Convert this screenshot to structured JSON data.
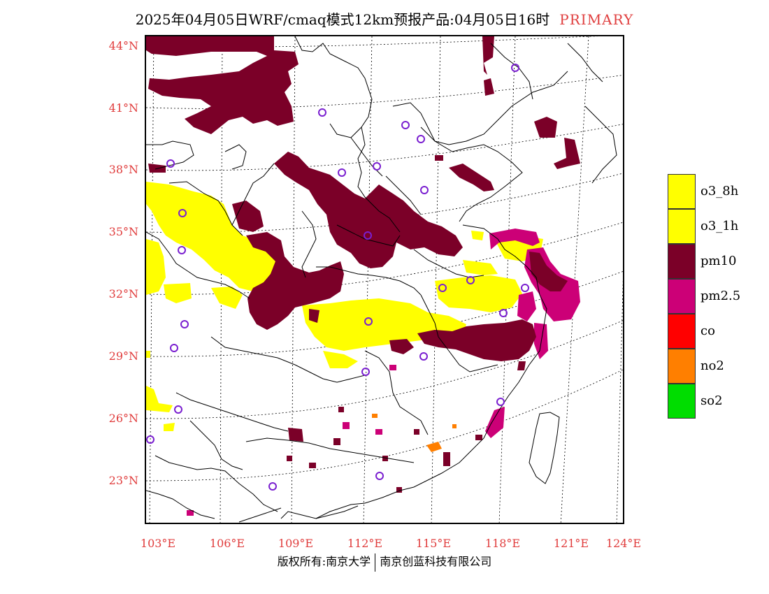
{
  "header": {
    "title": "2025年04月05日WRF/cmaq模式12km预报产品:04月05日16时",
    "primary": "PRIMARY"
  },
  "axes": {
    "lat_labels": [
      "44°N",
      "41°N",
      "38°N",
      "35°N",
      "32°N",
      "29°N",
      "26°N",
      "23°N"
    ],
    "lon_labels": [
      "103°E",
      "106°E",
      "109°E",
      "112°E",
      "115°E",
      "118°E",
      "121°E",
      "124°E"
    ]
  },
  "legend": {
    "items": [
      {
        "label": "o3_8h",
        "color": "#ffff00"
      },
      {
        "label": "o3_1h",
        "color": "#ffff00"
      },
      {
        "label": "pm10",
        "color": "#7b0028"
      },
      {
        "label": "pm2.5",
        "color": "#cc0077"
      },
      {
        "label": "co",
        "color": "#ff0000"
      },
      {
        "label": "no2",
        "color": "#ff7f00"
      },
      {
        "label": "so2",
        "color": "#00dd00"
      }
    ]
  },
  "footer": {
    "left": "版权所有:南京大学",
    "right": "南京创蓝科技有限公司"
  },
  "stations_marker": "circle-marker"
}
